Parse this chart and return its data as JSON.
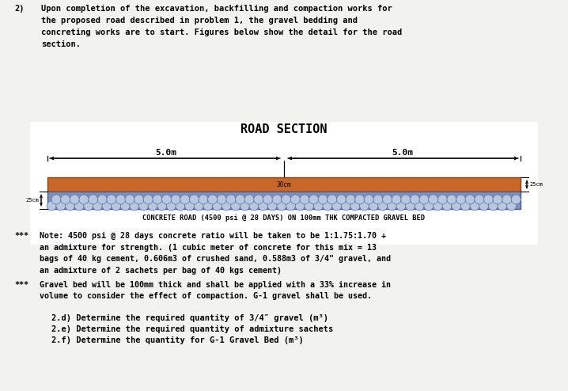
{
  "background_color": "#f0f0eb",
  "diagram_bg": "#ffffff",
  "title_number": "2)",
  "intro_text": "Upon completion of the excavation, backfilling and compaction works for\nthe proposed road described in problem 1, the gravel bedding and\nconcreting works are to start. Figures below show the detail for the road\nsection.",
  "diagram_title": "ROAD SECTION",
  "dim_left": "5.0m",
  "dim_right": "5.0m",
  "label_30cm": "30cm",
  "label_25cm_right": "25cm",
  "label_25cm_left": "25cm",
  "concrete_color": "#c8672a",
  "concrete_border": "#8b4010",
  "gravel_fill": "#8090bb",
  "gravel_pebble": "#b8c8e0",
  "gravel_border": "#4a5a8a",
  "caption": "CONCRETE ROAD (4500 psi @ 28 DAYS) ON 100mm THK COMPACTED GRAVEL BED",
  "note1_star": "***",
  "note1_text": "Note: 4500 psi @ 28 days concrete ratio will be taken to be 1:1.75:1.70 +\nan admixture for strength. (1 cubic meter of concrete for this mix = 13\nbags of 40 kg cement, 0.606m3 of crushed sand, 0.588m3 of 3/4\" gravel, and\nan admixture of 2 sachets per bag of 40 kgs cement)",
  "note2_star": "***",
  "note2_text": "Gravel bed will be 100mm thick and shall be applied with a 33% increase in\nvolume to consider the effect of compaction. G-1 gravel shall be used.",
  "questions": [
    "2.d) Determine the required quantity of 3/4″ gravel (m³)",
    "2.e) Determine the required quantity of admixture sachets",
    "2.f) Determine the quantity for G-1 Gravel Bed (m³)"
  ],
  "font_mono": "DejaVu Sans Mono"
}
